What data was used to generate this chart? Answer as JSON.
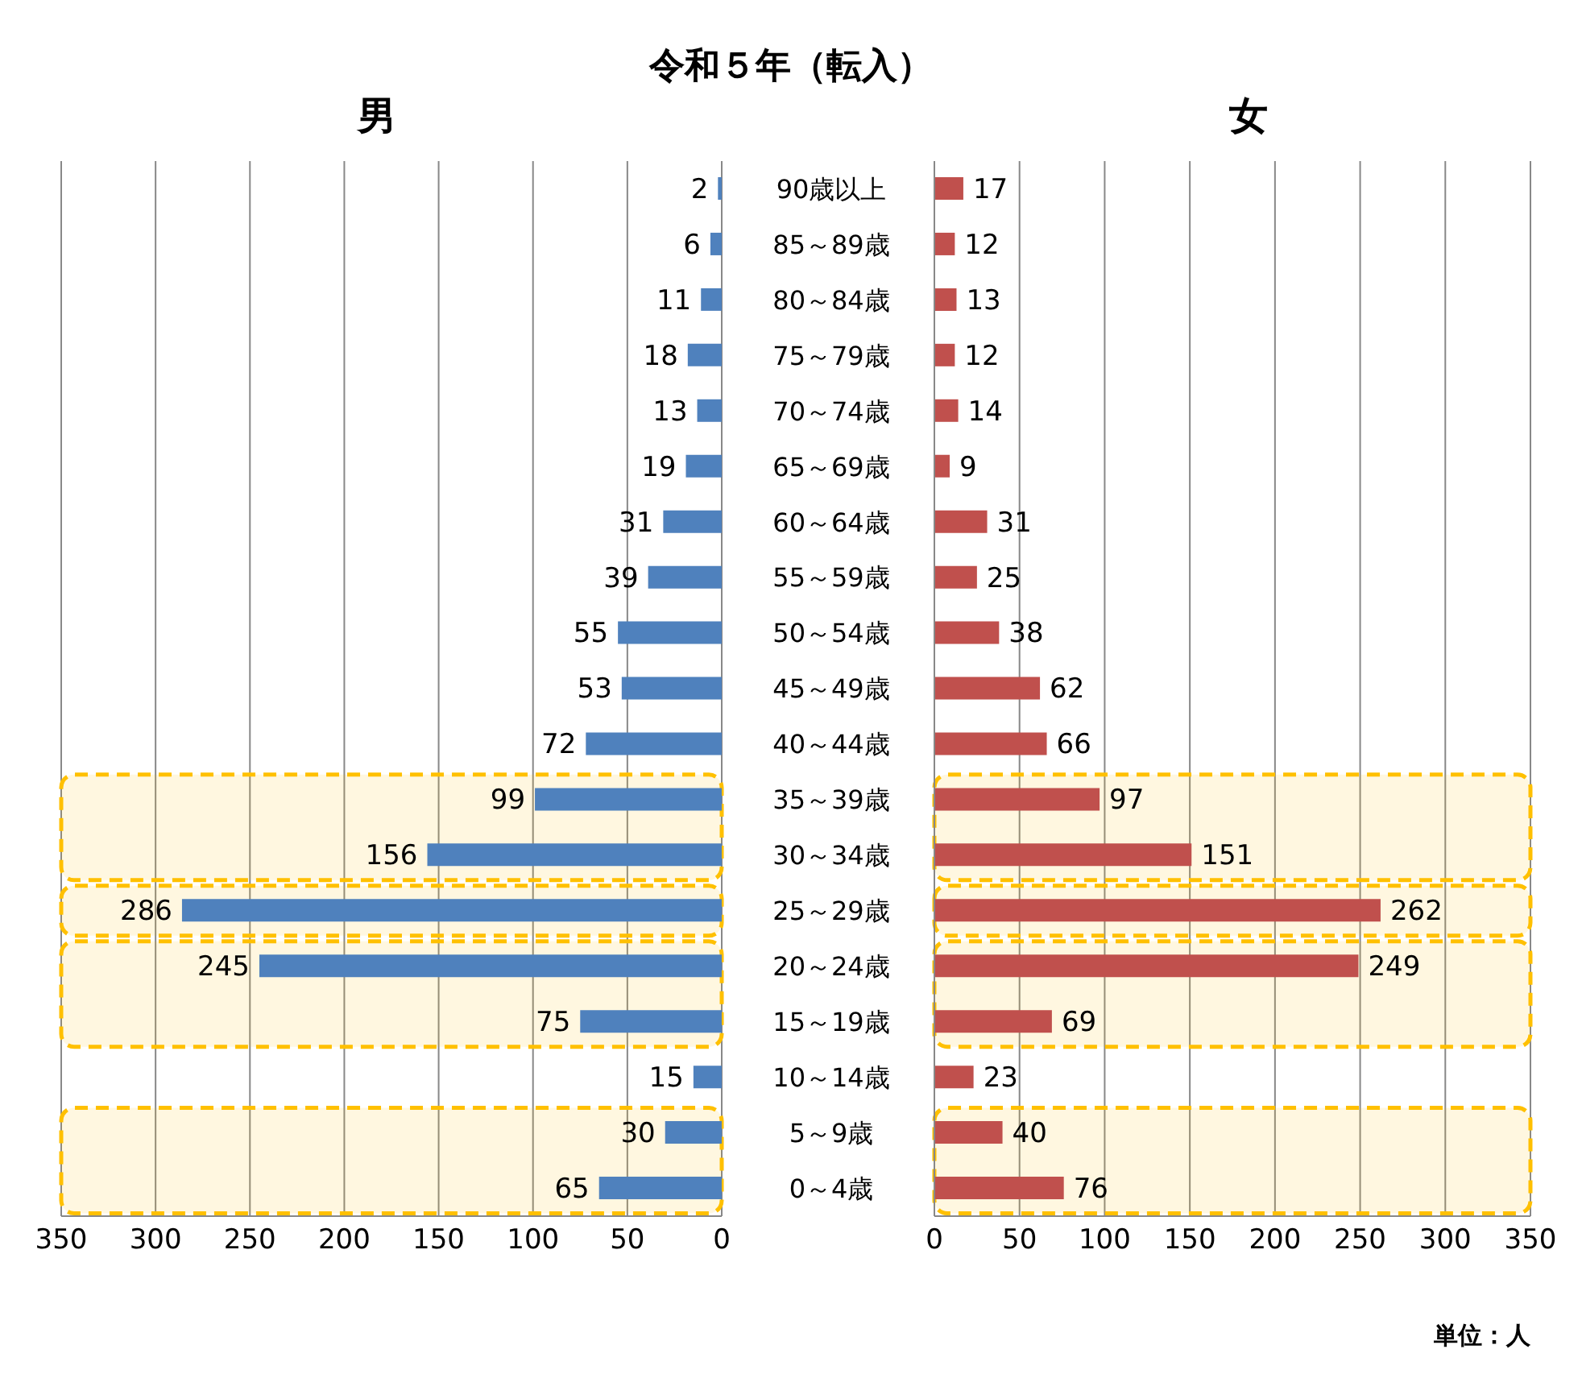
{
  "chart_data": [
    {
      "type": "bar",
      "orientation": "horizontal",
      "title": "令和５年（転入）",
      "subtitle": "男",
      "categories": [
        "90歳以上",
        "85～89歳",
        "80～84歳",
        "75～79歳",
        "70～74歳",
        "65～69歳",
        "60～64歳",
        "55～59歳",
        "50～54歳",
        "45～49歳",
        "40～44歳",
        "35～39歳",
        "30～34歳",
        "25～29歳",
        "20～24歳",
        "15～19歳",
        "10～14歳",
        "5～9歳",
        "0～4歳"
      ],
      "values": [
        2,
        6,
        11,
        18,
        13,
        19,
        31,
        39,
        55,
        53,
        72,
        99,
        156,
        286,
        245,
        75,
        15,
        30,
        65
      ],
      "color": "#4f81bd",
      "xlim": [
        350,
        0
      ],
      "xticks": [
        350,
        300,
        250,
        200,
        150,
        100,
        50,
        0
      ],
      "grid": "x",
      "data_labels": true,
      "tick_labels": "x",
      "bands": [
        {
          "axis": "y",
          "from": "35～39歳",
          "to": "30～34歳",
          "color": "#ffc000"
        },
        {
          "axis": "y",
          "from": "25～29歳",
          "to": "25～29歳",
          "color": "#ffc000"
        },
        {
          "axis": "y",
          "from": "20～24歳",
          "to": "15～19歳",
          "color": "#ffc000"
        },
        {
          "axis": "y",
          "from": "5～9歳",
          "to": "0～4歳",
          "color": "#ffc000"
        }
      ]
    },
    {
      "type": "bar",
      "orientation": "horizontal",
      "subtitle": "女",
      "categories": [
        "90歳以上",
        "85～89歳",
        "80～84歳",
        "75～79歳",
        "70～74歳",
        "65～69歳",
        "60～64歳",
        "55～59歳",
        "50～54歳",
        "45～49歳",
        "40～44歳",
        "35～39歳",
        "30～34歳",
        "25～29歳",
        "20～24歳",
        "15～19歳",
        "10～14歳",
        "5～9歳",
        "0～4歳"
      ],
      "values": [
        17,
        12,
        13,
        12,
        14,
        9,
        31,
        25,
        38,
        62,
        66,
        97,
        151,
        262,
        249,
        69,
        23,
        40,
        76
      ],
      "color": "#c0504d",
      "xlim": [
        0,
        350
      ],
      "xticks": [
        0,
        50,
        100,
        150,
        200,
        250,
        300,
        350
      ],
      "grid": "x",
      "data_labels": true,
      "annotations": [
        "単位：人"
      ],
      "bands": [
        {
          "axis": "y",
          "from": "35～39歳",
          "to": "30～34歳",
          "color": "#ffc000"
        },
        {
          "axis": "y",
          "from": "25～29歳",
          "to": "25～29歳",
          "color": "#ffc000"
        },
        {
          "axis": "y",
          "from": "20～24歳",
          "to": "15～19歳",
          "color": "#ffc000"
        },
        {
          "axis": "y",
          "from": "5～9歳",
          "to": "0～4歳",
          "color": "#ffc000"
        }
      ]
    }
  ]
}
